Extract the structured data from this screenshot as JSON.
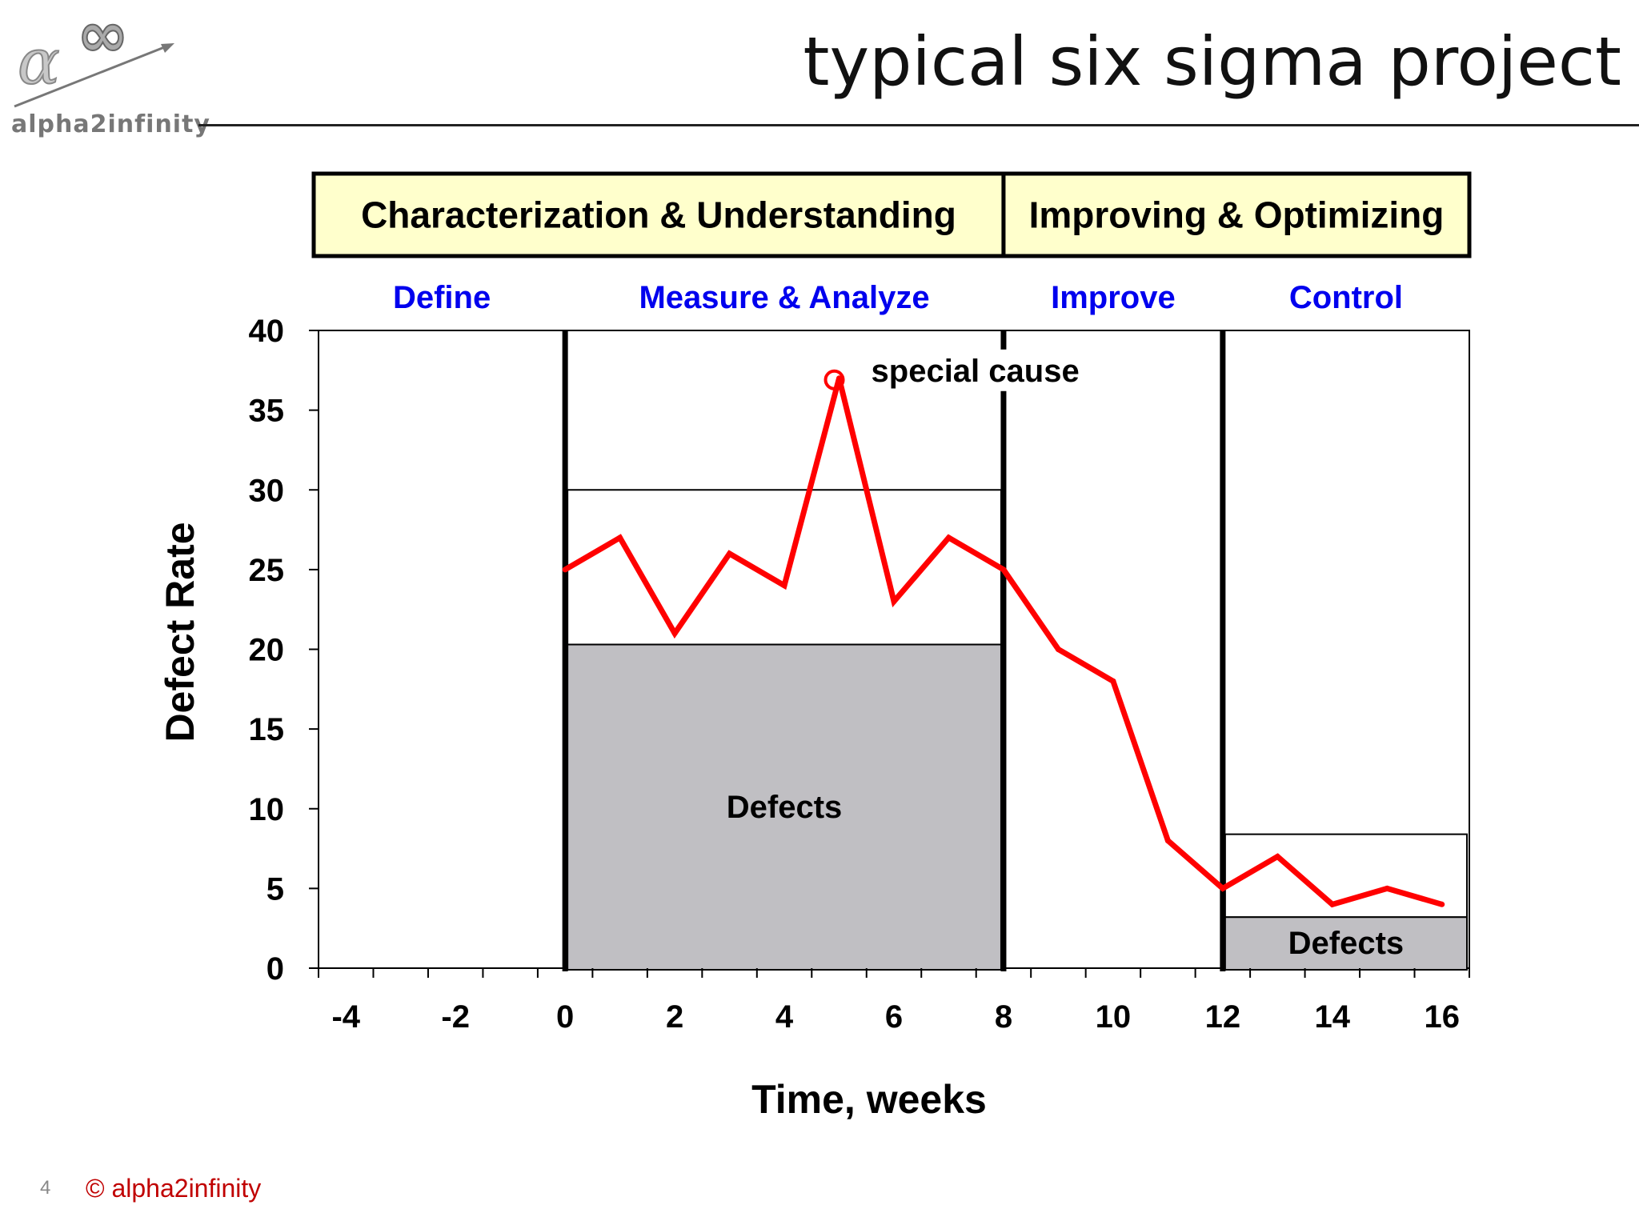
{
  "slide": {
    "title": "typical six sigma project",
    "logo_text": "alpha2infinity",
    "slide_number": "4",
    "copyright": "© alpha2infinity"
  },
  "colors": {
    "phase_box_fill": "#ffffcc",
    "phase_label": "#0000ee",
    "line": "#ff0000",
    "defects_fill": "#c0bfc3",
    "copyright": "#c00000"
  },
  "phase_groups": [
    {
      "label": "Characterization & Understanding",
      "x_start": -4.5,
      "x_end": 8
    },
    {
      "label": "Improving & Optimizing",
      "x_start": 8,
      "x_end": 16.5
    }
  ],
  "phases": [
    {
      "label": "Define",
      "x_start": -4.5,
      "x_end": 0
    },
    {
      "label": "Measure & Analyze",
      "x_start": 0,
      "x_end": 8
    },
    {
      "label": "Improve",
      "x_start": 8,
      "x_end": 12
    },
    {
      "label": "Control",
      "x_start": 12,
      "x_end": 16.5
    }
  ],
  "chart_data": {
    "type": "line",
    "xlabel": "Time, weeks",
    "ylabel": "Defect Rate",
    "xlim": [
      -4.5,
      16.5
    ],
    "ylim": [
      0,
      40
    ],
    "xticks": [
      -4,
      -2,
      0,
      2,
      4,
      6,
      8,
      10,
      12,
      14,
      16
    ],
    "yticks": [
      0,
      5,
      10,
      15,
      20,
      25,
      30,
      35,
      40
    ],
    "grid": false,
    "series": [
      {
        "x": [
          0,
          1,
          2,
          3,
          4,
          5,
          6,
          7,
          8,
          9,
          10,
          11,
          12,
          13,
          14,
          15,
          16
        ],
        "y": [
          25,
          27,
          21,
          26,
          24,
          37,
          23,
          27,
          25,
          20,
          18,
          8,
          5,
          7,
          4,
          5,
          4
        ]
      }
    ],
    "phase_dividers": [
      0,
      8,
      12
    ],
    "control_bands": [
      {
        "x_start": 0,
        "x_end": 8,
        "lower": 20.3,
        "upper": 30,
        "label": "Defects"
      },
      {
        "x_start": 12,
        "x_end": 16.5,
        "lower": 3.2,
        "upper": 8.4,
        "label": "Defects"
      }
    ],
    "annotations": [
      {
        "text": "special cause",
        "x": 5,
        "y": 37
      }
    ]
  }
}
